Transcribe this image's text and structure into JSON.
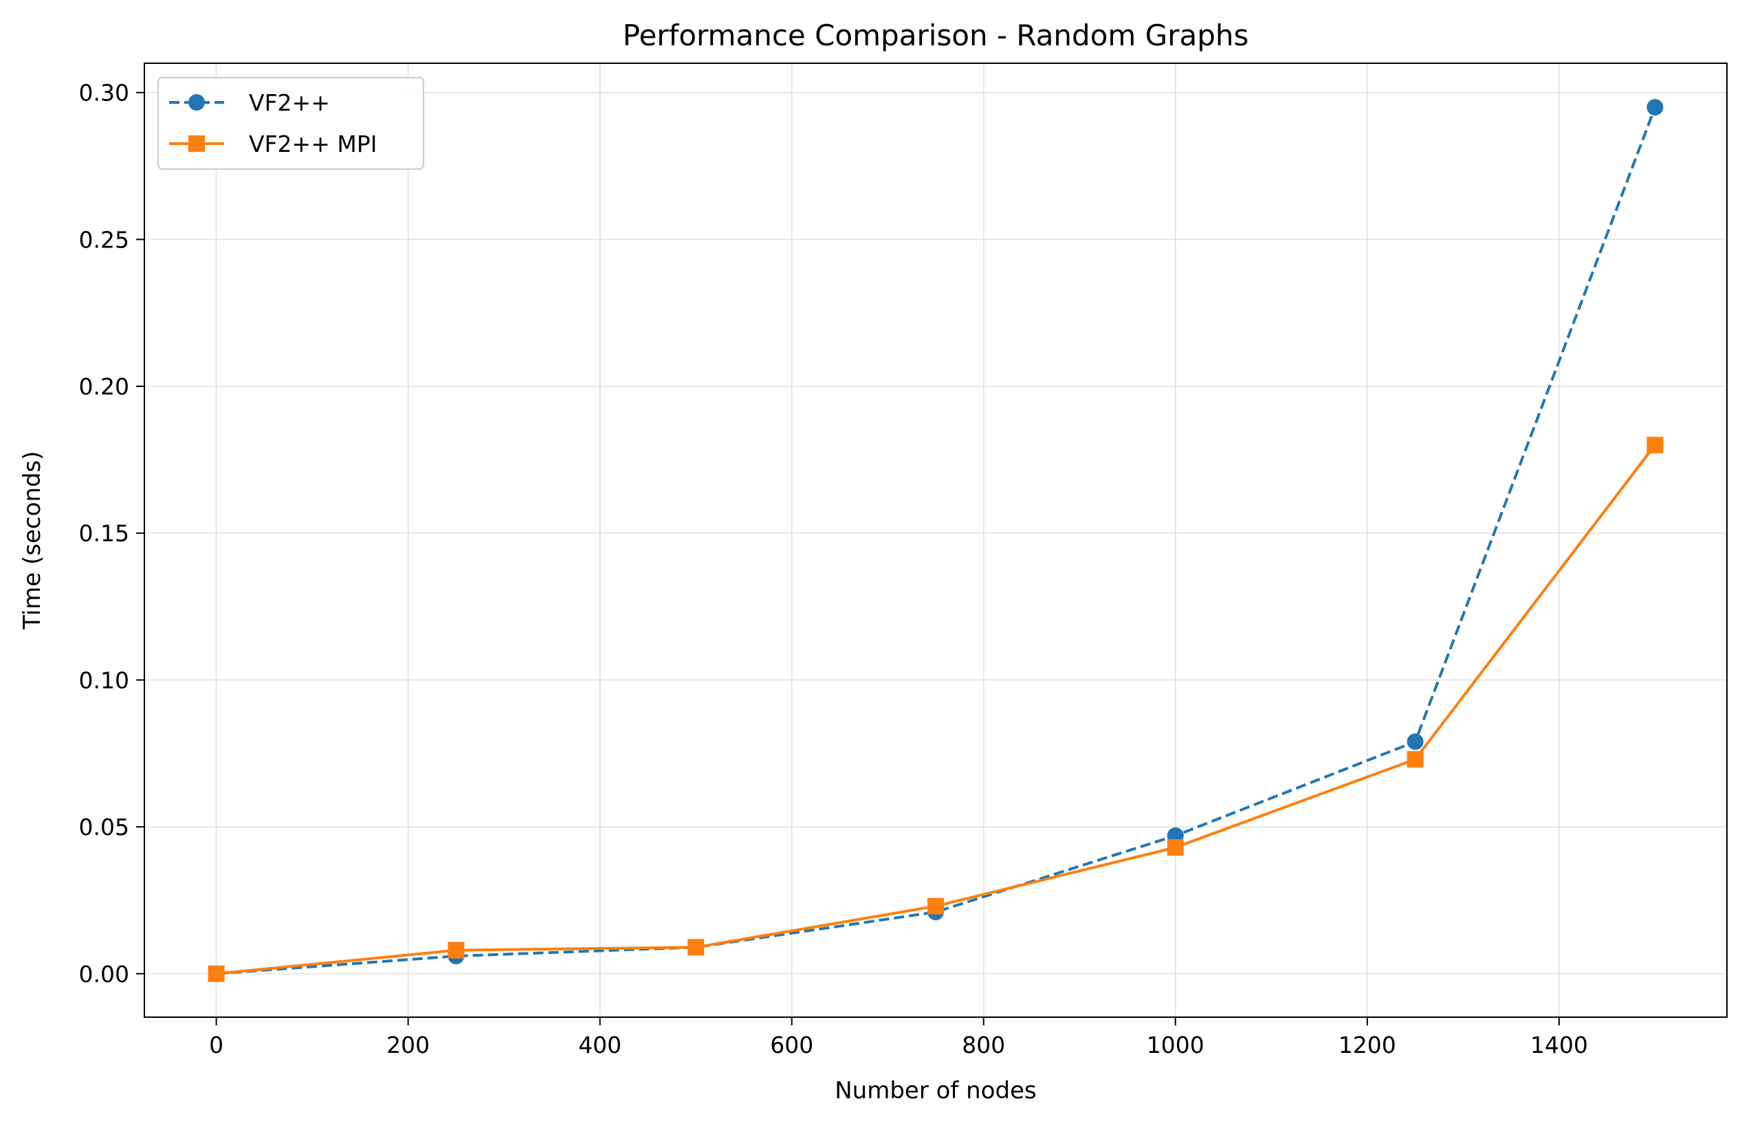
{
  "chart_data": {
    "type": "line",
    "title": "Performance Comparison - Random Graphs",
    "xlabel": "Number of nodes",
    "ylabel": "Time (seconds)",
    "xlim": [
      -75,
      1575
    ],
    "ylim": [
      -0.0148,
      0.31
    ],
    "xticks": [
      0,
      200,
      400,
      600,
      800,
      1000,
      1200,
      1400
    ],
    "yticks": [
      0.0,
      0.05,
      0.1,
      0.15,
      0.2,
      0.25,
      0.3
    ],
    "xtick_labels": [
      "0",
      "200",
      "400",
      "600",
      "800",
      "1000",
      "1200",
      "1400"
    ],
    "ytick_labels": [
      "0.00",
      "0.05",
      "0.10",
      "0.15",
      "0.20",
      "0.25",
      "0.30"
    ],
    "grid": true,
    "legend_position": "top-left",
    "x": [
      0,
      250,
      500,
      750,
      1000,
      1250,
      1500
    ],
    "series": [
      {
        "name": "VF2++",
        "values": [
          0.0,
          0.006,
          0.009,
          0.021,
          0.047,
          0.079,
          0.295
        ],
        "color": "#1f77b4",
        "marker": "circle",
        "linestyle": "dashed"
      },
      {
        "name": "VF2++ MPI",
        "values": [
          0.0,
          0.008,
          0.009,
          0.023,
          0.043,
          0.073,
          0.18
        ],
        "color": "#ff7f0e",
        "marker": "square",
        "linestyle": "solid"
      }
    ]
  }
}
